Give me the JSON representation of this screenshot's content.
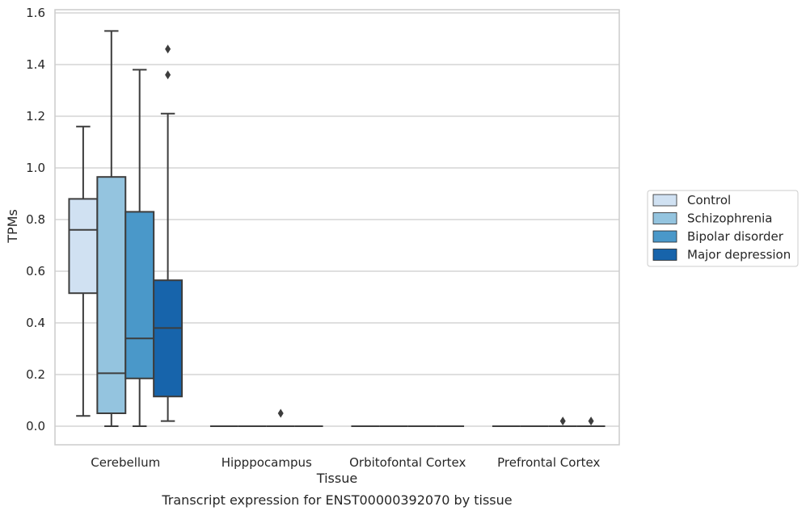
{
  "chart_data": {
    "type": "box",
    "caption": "Transcript expression for ENST00000392070 by tissue",
    "xlabel": "Tissue",
    "ylabel": "TPMs",
    "ylim": [
      -0.07,
      1.61
    ],
    "yticks": [
      "0.0",
      "0.2",
      "0.4",
      "0.6",
      "0.8",
      "1.0",
      "1.2",
      "1.4",
      "1.6"
    ],
    "grid": true,
    "legend_position": "right",
    "categories": [
      "Cerebellum",
      "Hipppocampus",
      "Orbitofontal Cortex",
      "Prefrontal Cortex"
    ],
    "series": [
      {
        "name": "Control",
        "color": "#d0e1f2",
        "boxes": [
          {
            "whislo": 0.04,
            "q1": 0.515,
            "med": 0.76,
            "q3": 0.88,
            "whishi": 1.16,
            "fliers": []
          },
          {
            "whislo": 0.0,
            "q1": 0.0,
            "med": 0.0,
            "q3": 0.0,
            "whishi": 0.0,
            "fliers": []
          },
          {
            "whislo": 0.0,
            "q1": 0.0,
            "med": 0.0,
            "q3": 0.0,
            "whishi": 0.0,
            "fliers": []
          },
          {
            "whislo": 0.0,
            "q1": 0.0,
            "med": 0.0,
            "q3": 0.0,
            "whishi": 0.0,
            "fliers": []
          }
        ]
      },
      {
        "name": "Schizophrenia",
        "color": "#94c4df",
        "boxes": [
          {
            "whislo": 0.0,
            "q1": 0.05,
            "med": 0.205,
            "q3": 0.965,
            "whishi": 1.53,
            "fliers": []
          },
          {
            "whislo": 0.0,
            "q1": 0.0,
            "med": 0.0,
            "q3": 0.0,
            "whishi": 0.0,
            "fliers": []
          },
          {
            "whislo": 0.0,
            "q1": 0.0,
            "med": 0.0,
            "q3": 0.0,
            "whishi": 0.0,
            "fliers": []
          },
          {
            "whislo": 0.0,
            "q1": 0.0,
            "med": 0.0,
            "q3": 0.0,
            "whishi": 0.0,
            "fliers": []
          }
        ]
      },
      {
        "name": "Bipolar disorder",
        "color": "#4a98c9",
        "boxes": [
          {
            "whislo": 0.0,
            "q1": 0.185,
            "med": 0.34,
            "q3": 0.83,
            "whishi": 1.38,
            "fliers": []
          },
          {
            "whislo": 0.0,
            "q1": 0.0,
            "med": 0.0,
            "q3": 0.0,
            "whishi": 0.0,
            "fliers": [
              0.05
            ]
          },
          {
            "whislo": 0.0,
            "q1": 0.0,
            "med": 0.0,
            "q3": 0.0,
            "whishi": 0.0,
            "fliers": []
          },
          {
            "whislo": 0.0,
            "q1": 0.0,
            "med": 0.0,
            "q3": 0.0,
            "whishi": 0.0,
            "fliers": [
              0.02
            ]
          }
        ]
      },
      {
        "name": "Major depression",
        "color": "#1764ab",
        "boxes": [
          {
            "whislo": 0.02,
            "q1": 0.115,
            "med": 0.38,
            "q3": 0.565,
            "whishi": 1.21,
            "fliers": [
              1.36,
              1.46
            ]
          },
          {
            "whislo": 0.0,
            "q1": 0.0,
            "med": 0.0,
            "q3": 0.0,
            "whishi": 0.0,
            "fliers": []
          },
          {
            "whislo": 0.0,
            "q1": 0.0,
            "med": 0.0,
            "q3": 0.0,
            "whishi": 0.0,
            "fliers": []
          },
          {
            "whislo": 0.0,
            "q1": 0.0,
            "med": 0.0,
            "q3": 0.0,
            "whishi": 0.0,
            "fliers": [
              0.02
            ]
          }
        ]
      }
    ]
  }
}
